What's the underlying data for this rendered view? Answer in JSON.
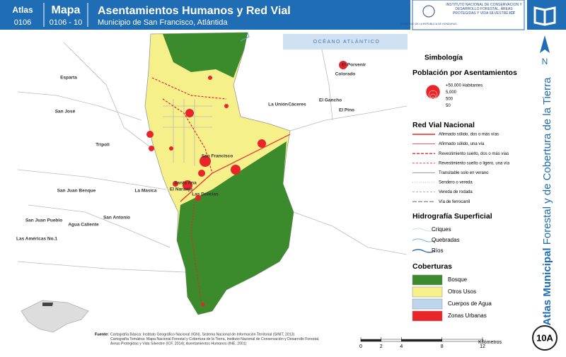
{
  "header": {
    "atlas_label": "Atlas",
    "atlas_code": "0106",
    "map_label": "Mapa",
    "map_code": "0106 - 10",
    "title": "Asentamientos Humanos y Red Vial",
    "subtitle": "Municipio de San Francisco, Atlántida",
    "gov": "GOBIERNO DE LA REPÚBLICA DE HONDURAS",
    "institute": "INSTITUTO NACIONAL DE CONSERVACIÓN Y DESARROLLO FORESTAL, ÁREAS PROTEGIDAS Y VIDA SILVESTRE",
    "institute_abbr": "ICF"
  },
  "side": {
    "series_bold": "Atlas Municipal",
    "series_rest": "Forestal y de Cobertura de la Tierra",
    "north": "N",
    "badge": "10A"
  },
  "map": {
    "ocean": "OCÉANO ATLÁNTICO",
    "places": [
      "Esparta",
      "San José",
      "Tripoli",
      "San Juan Benque",
      "La Masica",
      "San Antonio",
      "San Juan Pueblo",
      "Agua Caliente",
      "Las Américas No.1",
      "El Porvenir",
      "Colorado",
      "La Unión",
      "Cáceres",
      "El Gancho",
      "El Pino",
      "San Francisco",
      "Santa Ana",
      "El Naranjo",
      "Las Delicias"
    ]
  },
  "legend": {
    "title": "Simbología",
    "population": {
      "title": "Población por Asentamientos",
      "items": [
        "+50,000 Habitantes",
        "5,000",
        "500",
        "50"
      ]
    },
    "roads": {
      "title": "Red Vial Nacional",
      "items": [
        "Afirmado sólido, dos o más vías",
        "Afirmado sólido, una vía",
        "Revestimiento suelto, dos o más vías",
        "Revestimiento suelto o ligero, una vía",
        "Transitable solo en verano",
        "Sendero o vereda",
        "Vereda de rodada",
        "Vía de ferrocarril"
      ]
    },
    "hydro": {
      "title": "Hidrografía Superficial",
      "items": [
        "Criques",
        "Quebradas",
        "Ríos"
      ]
    },
    "cover": {
      "title": "Coberturas",
      "items": [
        {
          "name": "Bosque",
          "color": "#3b8a2c"
        },
        {
          "name": "Otros Usos",
          "color": "#f6f08a"
        },
        {
          "name": "Cuerpos de Agua",
          "color": "#bcd7ec"
        },
        {
          "name": "Zonas Urbanas",
          "color": "#e8262a"
        }
      ]
    }
  },
  "footer": {
    "source_label": "Fuente:",
    "source_lines": [
      "Cartografía Básica: Instituto Geográfico Nacional (IGN), Sistema Nacional de Información Territorial (SINIT, 2013)",
      "Cartografía Temática: Mapa Nacional Forestal y Cobertura de la Tierra, Instituto Nacional de Conservación y Desarrollo Forestal,",
      "Áreas Protegidas y Vida Silvestre (ICF, 2014); Asentamientos Humanos (INE, 2001)"
    ]
  },
  "scale": {
    "ticks": [
      0,
      2,
      4,
      8,
      12
    ],
    "unit": "Kilómetros"
  }
}
